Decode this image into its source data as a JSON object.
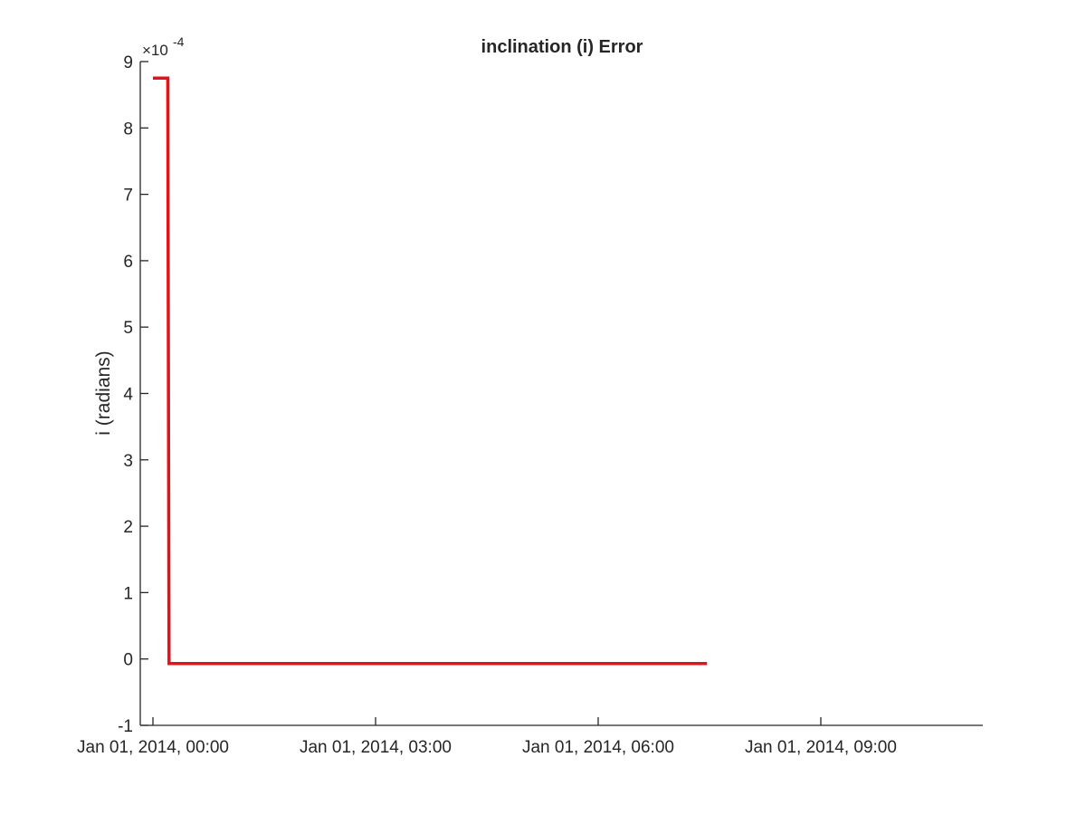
{
  "chart_data": {
    "type": "line",
    "title": "inclination (i) Error",
    "xlabel": "",
    "ylabel": "i (radians)",
    "y_exponent_label": "×10",
    "y_exponent_power": "-4",
    "xlim": [
      "Jan 01, 2014, 00:00",
      "Jan 01, 2014, 11:11"
    ],
    "ylim": [
      -1,
      9
    ],
    "grid": false,
    "x_ticks": [
      {
        "value": "Jan 01, 2014, 00:00",
        "label": "Jan 01, 2014, 00:00"
      },
      {
        "value": "Jan 01, 2014, 03:00",
        "label": "Jan 01, 2014, 03:00"
      },
      {
        "value": "Jan 01, 2014, 06:00",
        "label": "Jan 01, 2014, 06:00"
      },
      {
        "value": "Jan 01, 2014, 09:00",
        "label": "Jan 01, 2014, 09:00"
      }
    ],
    "y_ticks": [
      -1,
      0,
      1,
      2,
      3,
      4,
      5,
      6,
      7,
      8,
      9
    ],
    "series": [
      {
        "color": "#e3131a",
        "points": [
          {
            "x": "Jan 01, 2014, 00:00",
            "y": 8.75
          },
          {
            "x": "Jan 01, 2014, 00:12",
            "y": 8.75
          },
          {
            "x": "Jan 01, 2014, 00:13",
            "y": -0.07
          },
          {
            "x": "Jan 01, 2014, 07:28",
            "y": -0.07
          }
        ]
      }
    ]
  }
}
